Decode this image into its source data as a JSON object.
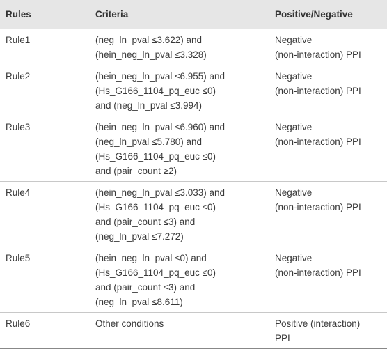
{
  "table": {
    "header": [
      "Rules",
      "Criteria",
      "Positive/Negative"
    ],
    "rows": [
      [
        [
          "Rule1"
        ],
        [
          "(neg_ln_pval ≤3.622) and",
          "(hein_neg_ln_pval ≤3.328)"
        ],
        [
          "Negative",
          "(non-interaction) PPI"
        ]
      ],
      [
        [
          "Rule2"
        ],
        [
          "(hein_neg_ln_pval ≤6.955) and",
          "(Hs_G166_1104_pq_euc ≤0)",
          "and (neg_ln_pval ≤3.994)"
        ],
        [
          "Negative",
          "(non-interaction) PPI"
        ]
      ],
      [
        [
          "Rule3"
        ],
        [
          "(hein_neg_ln_pval ≤6.960) and",
          "(neg_ln_pval ≤5.780) and",
          "(Hs_G166_1104_pq_euc ≤0)",
          "and (pair_count ≥2)"
        ],
        [
          "Negative",
          "(non-interaction) PPI"
        ]
      ],
      [
        [
          "Rule4"
        ],
        [
          "(hein_neg_ln_pval ≤3.033) and",
          "(Hs_G166_1104_pq_euc ≤0)",
          "and (pair_count ≤3) and",
          "(neg_ln_pval ≤7.272)"
        ],
        [
          "Negative",
          "(non-interaction) PPI"
        ]
      ],
      [
        [
          "Rule5"
        ],
        [
          "(hein_neg_ln_pval ≤0) and",
          "(Hs_G166_1104_pq_euc ≤0)",
          "and (pair_count ≤3) and",
          "(neg_ln_pval ≤8.611)"
        ],
        [
          "Negative",
          "(non-interaction) PPI"
        ]
      ],
      [
        [
          "Rule6"
        ],
        [
          "Other conditions"
        ],
        [
          "Positive (interaction)",
          "PPI"
        ]
      ]
    ]
  }
}
